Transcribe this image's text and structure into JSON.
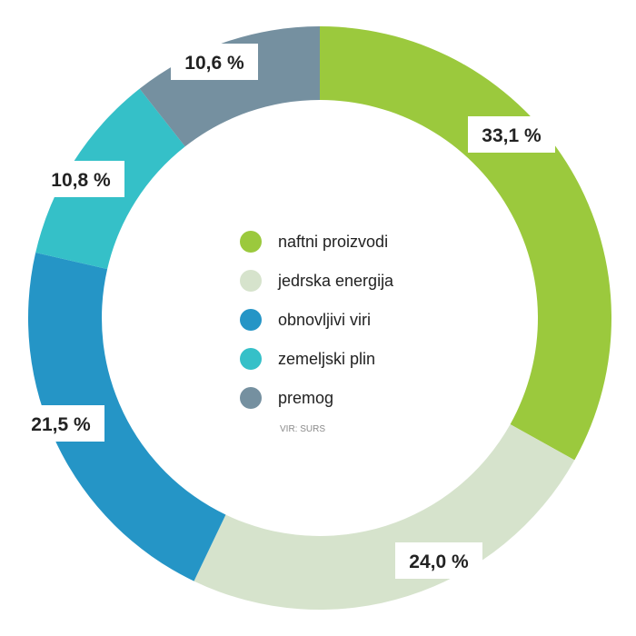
{
  "chart_data": {
    "type": "pie",
    "title": "",
    "categories": [
      "naftni proizvodi",
      "jedrska energija",
      "obnovljivi viri",
      "zemeljski plin",
      "premog"
    ],
    "values": [
      33.1,
      24.0,
      21.5,
      10.8,
      10.6
    ],
    "value_labels": [
      "33,1 %",
      "24,0 %",
      "21,5 %",
      "10,8 %",
      "10,6 %"
    ],
    "colors": [
      "#9bc93d",
      "#d6e3cc",
      "#2595c6",
      "#35c0c8",
      "#7590a0"
    ],
    "donut": true,
    "start": "top, clockwise",
    "legend_placement": "center",
    "source": "VIR: SURS"
  }
}
